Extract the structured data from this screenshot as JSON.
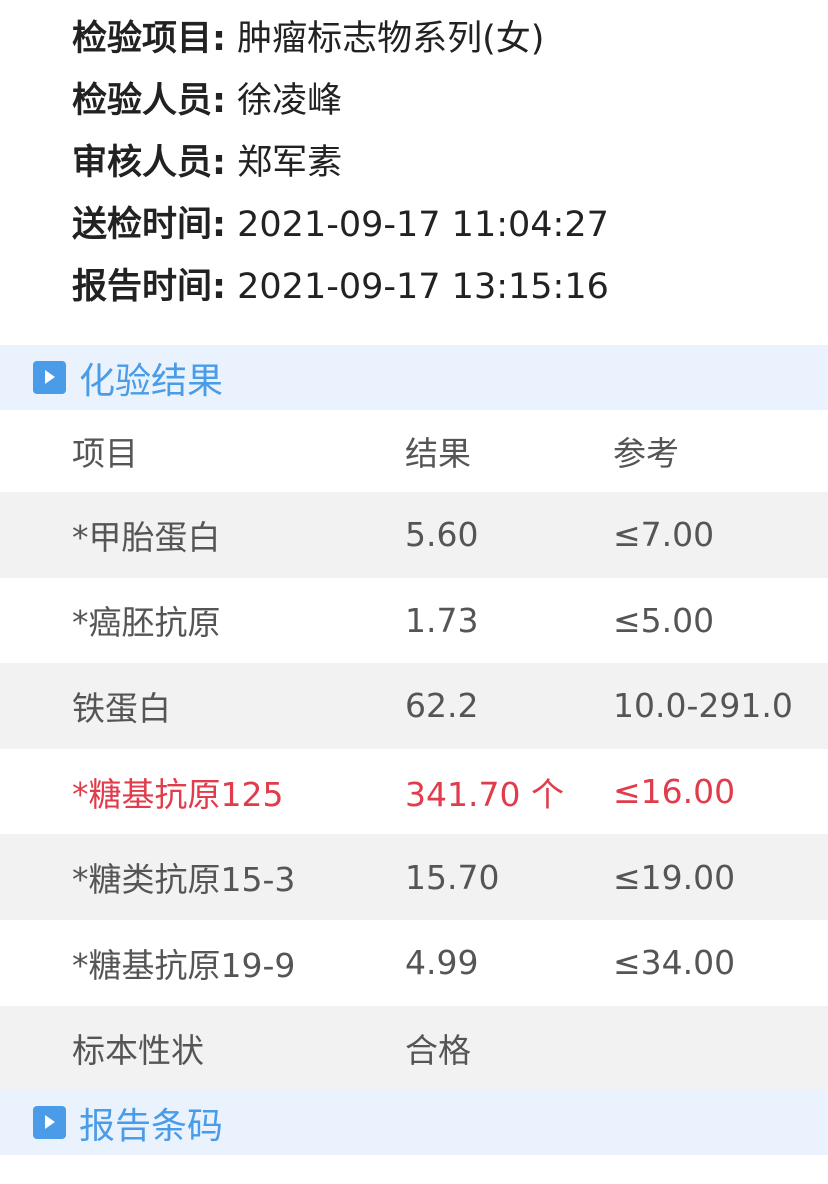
{
  "info": [
    {
      "label": "检验项目:",
      "value": "肿瘤标志物系列(女)"
    },
    {
      "label": "检验人员:",
      "value": "徐凌峰"
    },
    {
      "label": "审核人员:",
      "value": "郑军素"
    },
    {
      "label": "送检时间:",
      "value": "2021-09-17 11:04:27"
    },
    {
      "label": "报告时间:",
      "value": "2021-09-17 13:15:16"
    }
  ],
  "sections": {
    "results": "化验结果",
    "barcode": "报告条码"
  },
  "table": {
    "headers": [
      "项目",
      "结果",
      "参考"
    ],
    "rows": [
      {
        "item": "*甲胎蛋白",
        "result": "5.60",
        "ref": "≤7.00",
        "abnormal": false
      },
      {
        "item": "*癌胚抗原",
        "result": "1.73",
        "ref": "≤5.00",
        "abnormal": false
      },
      {
        "item": "铁蛋白",
        "result": "62.2",
        "ref": "10.0-291.0",
        "abnormal": false
      },
      {
        "item": "*糖基抗原125",
        "result": "341.70 个",
        "ref": "≤16.00",
        "abnormal": true
      },
      {
        "item": "*糖类抗原15-3",
        "result": "15.70",
        "ref": "≤19.00",
        "abnormal": false
      },
      {
        "item": "*糖基抗原19-9",
        "result": "4.99",
        "ref": "≤34.00",
        "abnormal": false
      },
      {
        "item": "标本性状",
        "result": "合格",
        "ref": "",
        "abnormal": false
      }
    ]
  },
  "colors": {
    "accent": "#4a9be8",
    "abnormal": "#e03c4c",
    "section_bg": "#eaf3fd",
    "stripe": "#f2f2f2"
  }
}
